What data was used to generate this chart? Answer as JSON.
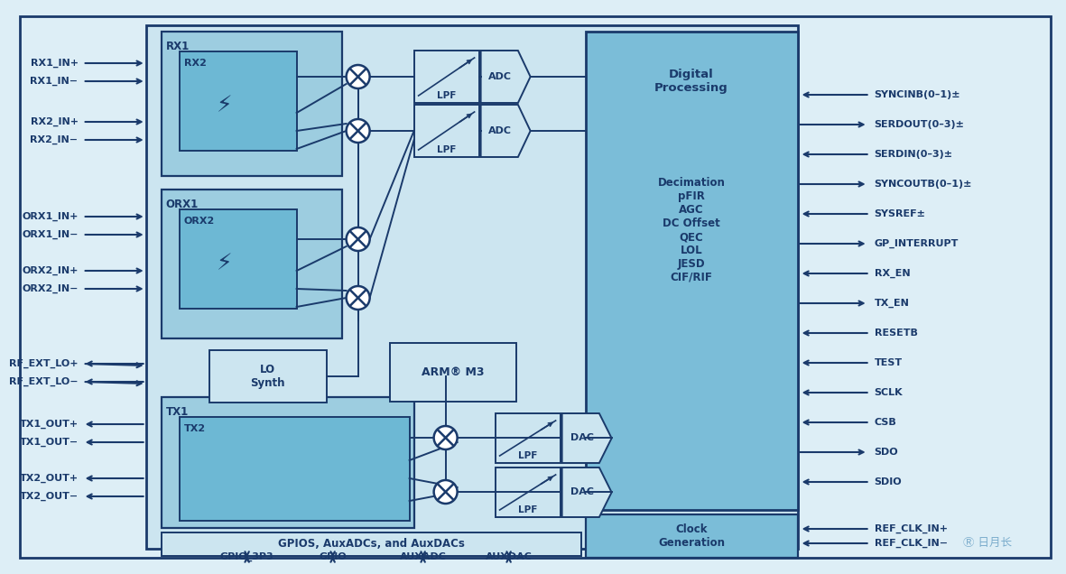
{
  "c_bg_outer": "#ddeef6",
  "c_bg_inner": "#cce5f0",
  "c_rx1": "#9dcde0",
  "c_rx2": "#6db8d4",
  "c_orx1": "#9dcde0",
  "c_orx2": "#6db8d4",
  "c_tx1": "#9dcde0",
  "c_tx2": "#6db8d4",
  "c_digital": "#7bbdd8",
  "c_clock": "#7bbdd8",
  "c_lpf_adc": "#cce5f0",
  "c_arm": "#cce5f0",
  "c_lo": "#cce5f0",
  "c_gpio_bar": "#cce5f0",
  "c_dark": "#1a3a6b",
  "c_mid": "#1a5080",
  "right_labels": [
    "SYNCINB(0–1)±",
    "SERDOUT(0–3)±",
    "SERDIN(0–3)±",
    "SYNCOUTB(0–1)±",
    "SYSREF±",
    "GP_INTERRUPT",
    "RX_EN",
    "TX_EN",
    "RESETB",
    "TEST",
    "SCLK",
    "CSB",
    "SDO",
    "SDIO"
  ],
  "right_dirs": [
    "in",
    "out",
    "in",
    "out",
    "in",
    "out",
    "in",
    "out",
    "in",
    "in",
    "in",
    "in",
    "out",
    "in"
  ],
  "clk_labels": [
    "REF_CLK_IN+",
    "REF_CLK_IN−"
  ],
  "left_labels": [
    "RX1_IN+",
    "RX1_IN−",
    "RX2_IN+",
    "RX2_IN−",
    "ORX1_IN+",
    "ORX1_IN−",
    "ORX2_IN+",
    "ORX2_IN−",
    "RF_EXT_LO+",
    "RF_EXT_LO−",
    "TX1_OUT+",
    "TX1_OUT−",
    "TX2_OUT+",
    "TX2_OUT−"
  ],
  "left_dirs": [
    "in",
    "in",
    "in",
    "in",
    "in",
    "in",
    "in",
    "in",
    "out",
    "out",
    "out",
    "out",
    "out",
    "out"
  ],
  "bottom_labels": [
    "GPIO_3P3",
    "GPIO",
    "AUXADC",
    "AUXDAC"
  ]
}
